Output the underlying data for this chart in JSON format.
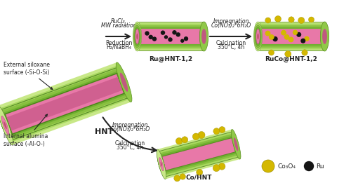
{
  "bg_color": "#ffffff",
  "co3o4_color": "#d4b800",
  "ru_color": "#151515",
  "arrow_color": "#222222",
  "text_color": "#222222",
  "green_outer": "#8ecf4a",
  "green_mid": "#6db832",
  "green_inner": "#5aa028",
  "green_light": "#b0e060",
  "green_stripe": "#4a8820",
  "pink_main": "#e075a8",
  "pink_dark": "#c05888",
  "labels": {
    "hnt": "HNT",
    "ru_hnt": "Ru@HNT-1,2",
    "ruco_hnt": "RuCo@HNT-1,2",
    "co_hnt": "Co/HNT",
    "co3o4": "Co₃O₄",
    "ru": "Ru",
    "ext_siloxane_1": "External siloxane",
    "ext_siloxane_2": "surface (-Si-O-Si)",
    "int_alumina_1": "Internal alumina",
    "int_alumina_2": "surface (-Al-O-)",
    "step1_l1": "RuCl₃,",
    "step1_l2": "MW radiation",
    "step1_l3": "Reduction",
    "step1_l4": "H₂/NaBH₄",
    "step2_l1": "Impregnation",
    "step2_l2": "Co(NO₃)₂*6H₂O",
    "step2_l3": "Calcination",
    "step2_l4": "350°C, 4h",
    "step3_l1": "Impregnation",
    "step3_l2": "Co(NO₃)₂*6H₂O",
    "step3_l3": "Calcination",
    "step3_l4": "350°C, 4h"
  }
}
